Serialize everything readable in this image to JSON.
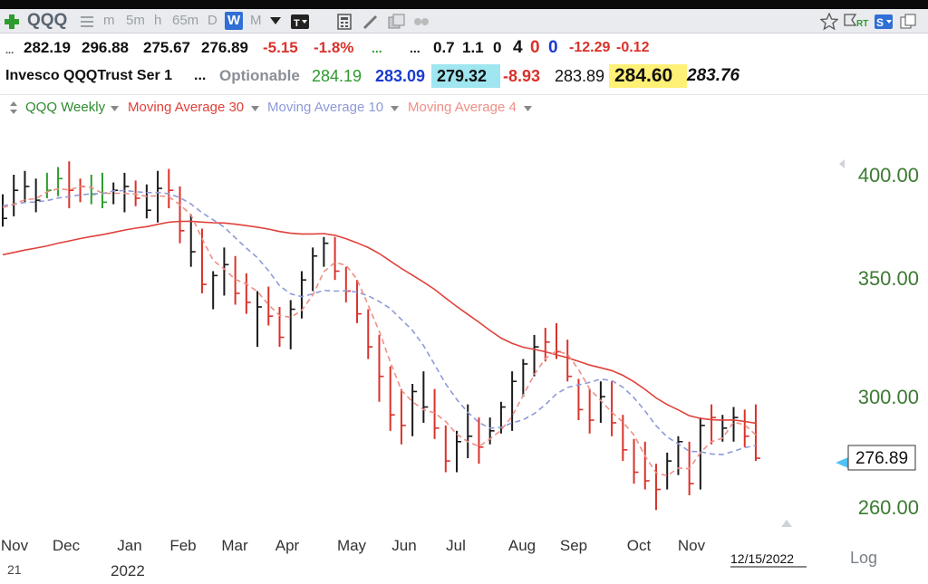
{
  "toolbar": {
    "symbol": "QQQ",
    "intervals": [
      "m",
      "5m",
      "h",
      "65m",
      "D",
      "W",
      "M"
    ],
    "active_interval": "W",
    "icons": [
      "add-icon",
      "list-icon",
      "dropdown-icon",
      "text-tool-icon",
      "calculator-icon",
      "pencil-icon",
      "layout-icon",
      "settings-icon",
      "star-icon",
      "flag-rt-icon",
      "s-badge-icon",
      "copy-icon"
    ],
    "rt_label": "RT",
    "s_label": "S"
  },
  "quote_row1": {
    "prefix": "...",
    "open": "282.19",
    "high": "296.88",
    "low": "275.67",
    "close": "276.89",
    "change": "-5.15",
    "change_pct": "-1.8%",
    "dots1": "...",
    "dots2": "...",
    "v1": "0.7",
    "v2": "1.1",
    "v3": "0",
    "v4": "4",
    "v5": "0",
    "v6": "0",
    "v7": "-12.29",
    "v8": "-0.12"
  },
  "quote_row2": {
    "name": "Invesco QQQTrust Ser 1",
    "dots": "...",
    "optionable": "Optionable",
    "p1": "284.19",
    "p2": "283.09",
    "p3": "279.32",
    "p4": "-8.93",
    "p5": "283.89",
    "p6": "284.60",
    "p7": "283.76"
  },
  "legend": [
    {
      "label": "QQQ Weekly",
      "color": "#2e8b2e"
    },
    {
      "label": "Moving Average 30",
      "color": "#e0413a"
    },
    {
      "label": "Moving Average 10",
      "color": "#8e9ad8"
    },
    {
      "label": "Moving Average 4",
      "color": "#ef8f86"
    }
  ],
  "colors": {
    "up": "#1a1a1a",
    "down": "#d9322b",
    "green": "#2e9b2e",
    "axis_label": "#3d7a34",
    "ma30": "#e0413a",
    "ma10": "#8e9ad8",
    "ma4": "#ef8f86"
  },
  "chart_data": {
    "type": "ohlc-bar",
    "title": "QQQ Weekly",
    "yticks": [
      400,
      350,
      300,
      260
    ],
    "ylabels": [
      "400.00",
      "350.00",
      "300.00",
      "260.00"
    ],
    "current_price_label": "276.89",
    "scale_label": "Log",
    "date_label": "12/15/2022",
    "months": [
      "Nov",
      "Dec",
      "Jan",
      "Feb",
      "Mar",
      "Apr",
      "May",
      "Jun",
      "Jul",
      "Aug",
      "Sep",
      "Oct",
      "Nov"
    ],
    "year_labels": [
      "21",
      "2022"
    ],
    "bars": [
      {
        "h": 390,
        "l": 374,
        "c": 378,
        "d": "up"
      },
      {
        "h": 400,
        "l": 379,
        "c": 392,
        "d": "up"
      },
      {
        "h": 402,
        "l": 386,
        "c": 394,
        "d": "up"
      },
      {
        "h": 398,
        "l": 381,
        "c": 387,
        "d": "up"
      },
      {
        "h": 401,
        "l": 388,
        "c": 392,
        "d": "green"
      },
      {
        "h": 404,
        "l": 389,
        "c": 398,
        "d": "green"
      },
      {
        "h": 407,
        "l": 383,
        "c": 392,
        "d": "down"
      },
      {
        "h": 398,
        "l": 386,
        "c": 394,
        "d": "down"
      },
      {
        "h": 400,
        "l": 385,
        "c": 390,
        "d": "green"
      },
      {
        "h": 401,
        "l": 383,
        "c": 386,
        "d": "green"
      },
      {
        "h": 396,
        "l": 385,
        "c": 392,
        "d": "up"
      },
      {
        "h": 401,
        "l": 381,
        "c": 394,
        "d": "up"
      },
      {
        "h": 397,
        "l": 384,
        "c": 388,
        "d": "down"
      },
      {
        "h": 395,
        "l": 378,
        "c": 382,
        "d": "up"
      },
      {
        "h": 402,
        "l": 376,
        "c": 393,
        "d": "up"
      },
      {
        "h": 403,
        "l": 383,
        "c": 392,
        "d": "down"
      },
      {
        "h": 394,
        "l": 366,
        "c": 372,
        "d": "down"
      },
      {
        "h": 380,
        "l": 355,
        "c": 362,
        "d": "up"
      },
      {
        "h": 373,
        "l": 343,
        "c": 347,
        "d": "down"
      },
      {
        "h": 353,
        "l": 336,
        "c": 351,
        "d": "up"
      },
      {
        "h": 364,
        "l": 342,
        "c": 356,
        "d": "up"
      },
      {
        "h": 360,
        "l": 338,
        "c": 343,
        "d": "down"
      },
      {
        "h": 352,
        "l": 334,
        "c": 339,
        "d": "down"
      },
      {
        "h": 344,
        "l": 320,
        "c": 337,
        "d": "up"
      },
      {
        "h": 346,
        "l": 329,
        "c": 333,
        "d": "down"
      },
      {
        "h": 337,
        "l": 320,
        "c": 324,
        "d": "down"
      },
      {
        "h": 340,
        "l": 319,
        "c": 336,
        "d": "up"
      },
      {
        "h": 353,
        "l": 332,
        "c": 349,
        "d": "up"
      },
      {
        "h": 364,
        "l": 344,
        "c": 360,
        "d": "up"
      },
      {
        "h": 369,
        "l": 355,
        "c": 366,
        "d": "up"
      },
      {
        "h": 369,
        "l": 349,
        "c": 353,
        "d": "down"
      },
      {
        "h": 355,
        "l": 339,
        "c": 344,
        "d": "down"
      },
      {
        "h": 349,
        "l": 330,
        "c": 334,
        "d": "down"
      },
      {
        "h": 336,
        "l": 315,
        "c": 320,
        "d": "down"
      },
      {
        "h": 325,
        "l": 298,
        "c": 308,
        "d": "down"
      },
      {
        "h": 312,
        "l": 287,
        "c": 293,
        "d": "down"
      },
      {
        "h": 303,
        "l": 282,
        "c": 289,
        "d": "down"
      },
      {
        "h": 305,
        "l": 285,
        "c": 302,
        "d": "up"
      },
      {
        "h": 310,
        "l": 290,
        "c": 296,
        "d": "up"
      },
      {
        "h": 303,
        "l": 284,
        "c": 288,
        "d": "down"
      },
      {
        "h": 289,
        "l": 272,
        "c": 276,
        "d": "down"
      },
      {
        "h": 287,
        "l": 272,
        "c": 283,
        "d": "up"
      },
      {
        "h": 297,
        "l": 277,
        "c": 285,
        "d": "up"
      },
      {
        "h": 292,
        "l": 275,
        "c": 281,
        "d": "down"
      },
      {
        "h": 292,
        "l": 282,
        "c": 287,
        "d": "up"
      },
      {
        "h": 298,
        "l": 286,
        "c": 296,
        "d": "up"
      },
      {
        "h": 310,
        "l": 287,
        "c": 306,
        "d": "up"
      },
      {
        "h": 315,
        "l": 300,
        "c": 313,
        "d": "up"
      },
      {
        "h": 325,
        "l": 308,
        "c": 320,
        "d": "up"
      },
      {
        "h": 328,
        "l": 314,
        "c": 322,
        "d": "down"
      },
      {
        "h": 330,
        "l": 315,
        "c": 318,
        "d": "down"
      },
      {
        "h": 323,
        "l": 306,
        "c": 308,
        "d": "down"
      },
      {
        "h": 307,
        "l": 291,
        "c": 295,
        "d": "down"
      },
      {
        "h": 303,
        "l": 286,
        "c": 291,
        "d": "down"
      },
      {
        "h": 306,
        "l": 290,
        "c": 300,
        "d": "up"
      },
      {
        "h": 306,
        "l": 285,
        "c": 290,
        "d": "down"
      },
      {
        "h": 293,
        "l": 276,
        "c": 280,
        "d": "down"
      },
      {
        "h": 284,
        "l": 268,
        "c": 272,
        "d": "down"
      },
      {
        "h": 283,
        "l": 266,
        "c": 269,
        "d": "down"
      },
      {
        "h": 275,
        "l": 259,
        "c": 266,
        "d": "down"
      },
      {
        "h": 279,
        "l": 266,
        "c": 276,
        "d": "up"
      },
      {
        "h": 285,
        "l": 271,
        "c": 283,
        "d": "up"
      },
      {
        "h": 283,
        "l": 264,
        "c": 268,
        "d": "down"
      },
      {
        "h": 292,
        "l": 266,
        "c": 289,
        "d": "up"
      },
      {
        "h": 297,
        "l": 282,
        "c": 292,
        "d": "down"
      },
      {
        "h": 293,
        "l": 283,
        "c": 288,
        "d": "up"
      },
      {
        "h": 296,
        "l": 283,
        "c": 292,
        "d": "up"
      },
      {
        "h": 295,
        "l": 281,
        "c": 285,
        "d": "down"
      },
      {
        "h": 297,
        "l": 276,
        "c": 277,
        "d": "down"
      }
    ]
  }
}
